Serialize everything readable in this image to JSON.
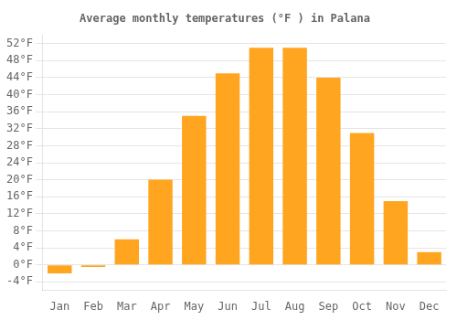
{
  "chart_data": {
    "type": "bar",
    "title": "Average monthly temperatures (°F ) in Palana",
    "categories": [
      "Jan",
      "Feb",
      "Mar",
      "Apr",
      "May",
      "Jun",
      "Jul",
      "Aug",
      "Sep",
      "Oct",
      "Nov",
      "Dec"
    ],
    "values": [
      -2,
      -0.5,
      6,
      20,
      35,
      45,
      51,
      51,
      44,
      31,
      15,
      3
    ],
    "color": "#FFA520",
    "ylim": [
      -6,
      54
    ],
    "yticks": [
      {
        "value": -4,
        "label": "-4°F"
      },
      {
        "value": 0,
        "label": "0°F"
      },
      {
        "value": 4,
        "label": "4°F"
      },
      {
        "value": 8,
        "label": "8°F"
      },
      {
        "value": 12,
        "label": "12°F"
      },
      {
        "value": 16,
        "label": "16°F"
      },
      {
        "value": 20,
        "label": "20°F"
      },
      {
        "value": 24,
        "label": "24°F"
      },
      {
        "value": 28,
        "label": "28°F"
      },
      {
        "value": 32,
        "label": "32°F"
      },
      {
        "value": 36,
        "label": "36°F"
      },
      {
        "value": 40,
        "label": "40°F"
      },
      {
        "value": 44,
        "label": "44°F"
      },
      {
        "value": 48,
        "label": "48°F"
      },
      {
        "value": 52,
        "label": "52°F"
      }
    ],
    "grid": true
  }
}
